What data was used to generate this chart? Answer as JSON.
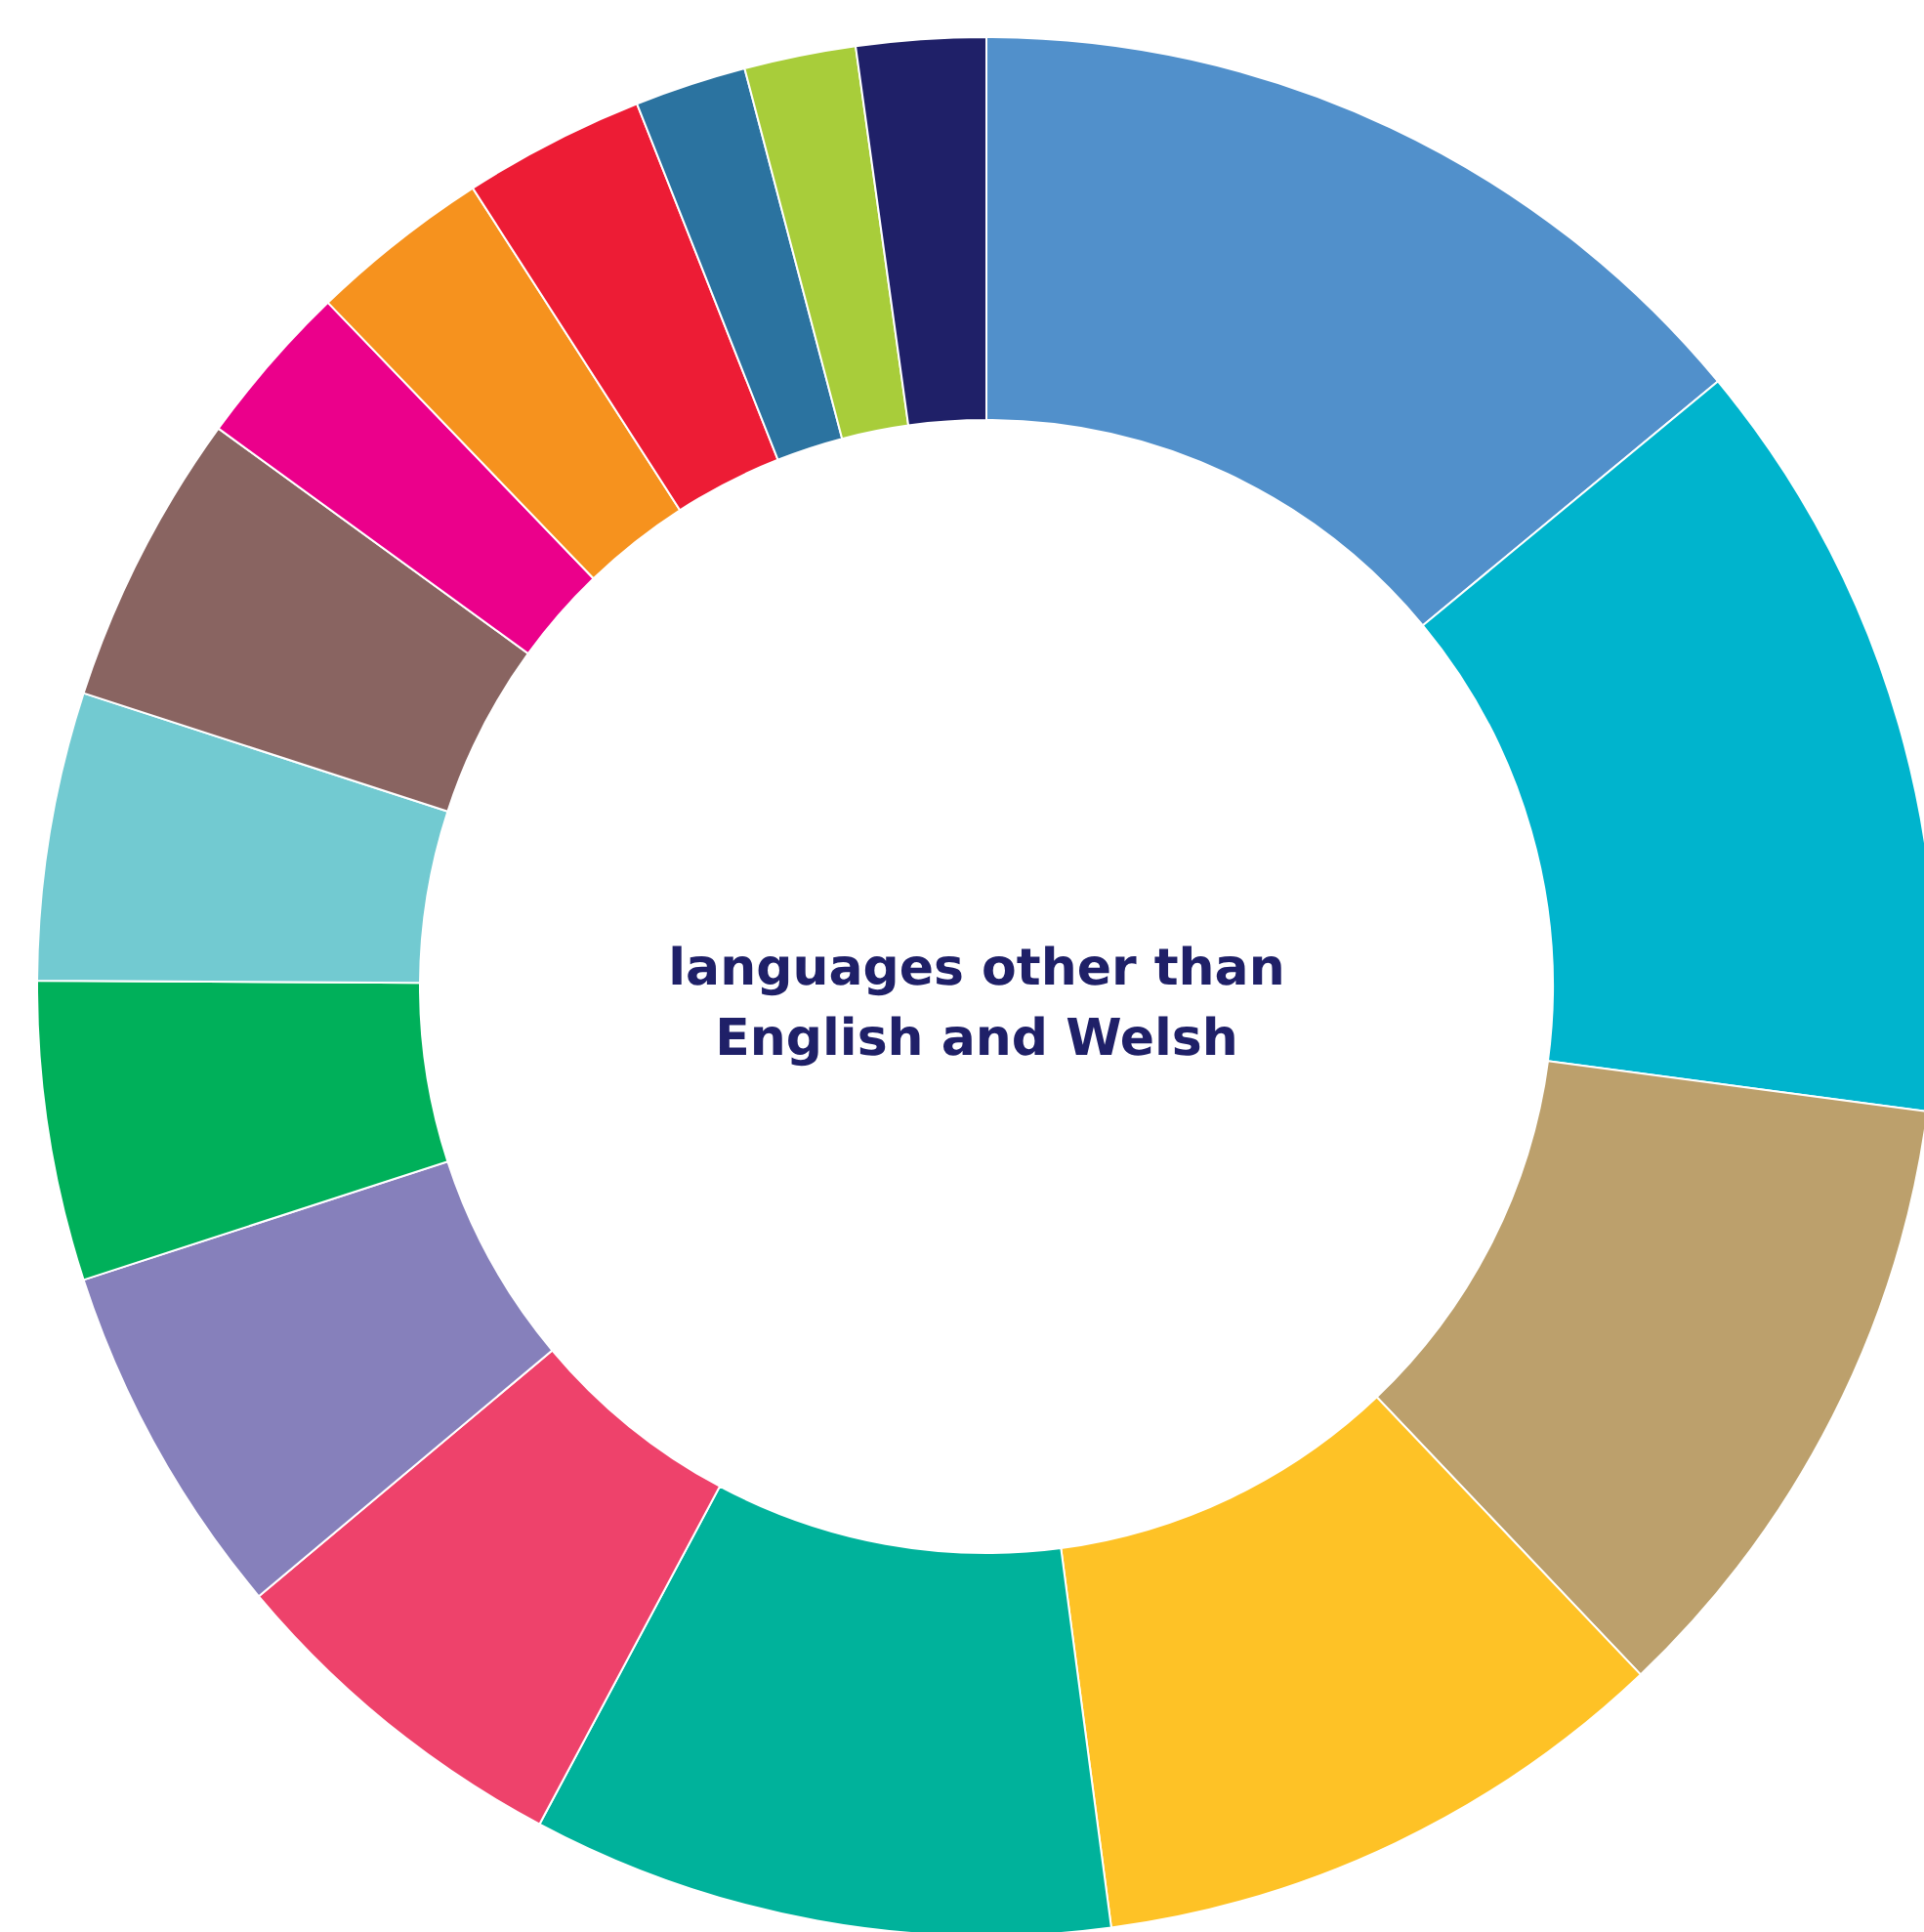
{
  "chart_data": {
    "type": "donut",
    "categories": [
      null,
      null,
      null,
      null,
      null,
      null,
      null,
      null,
      null,
      null,
      null,
      null,
      null,
      null,
      null,
      null
    ],
    "values": [
      14.0,
      13.1,
      10.8,
      10.0,
      9.9,
      6.1,
      6.1,
      5.1,
      4.9,
      5.0,
      2.8,
      3.1,
      3.1,
      1.9,
      1.9,
      2.2
    ],
    "colors": [
      "#5190cb",
      "#00b4cd",
      "#bca06c",
      "#fec226",
      "#00b29b",
      "#ee426b",
      "#8680bb",
      "#00b05a",
      "#72cad1",
      "#896461",
      "#eb008b",
      "#f6921e",
      "#ed1c35",
      "#2b73a0",
      "#a8cd3a",
      "#1f2068"
    ],
    "annotations": [
      "languages other than English and Welsh"
    ]
  }
}
